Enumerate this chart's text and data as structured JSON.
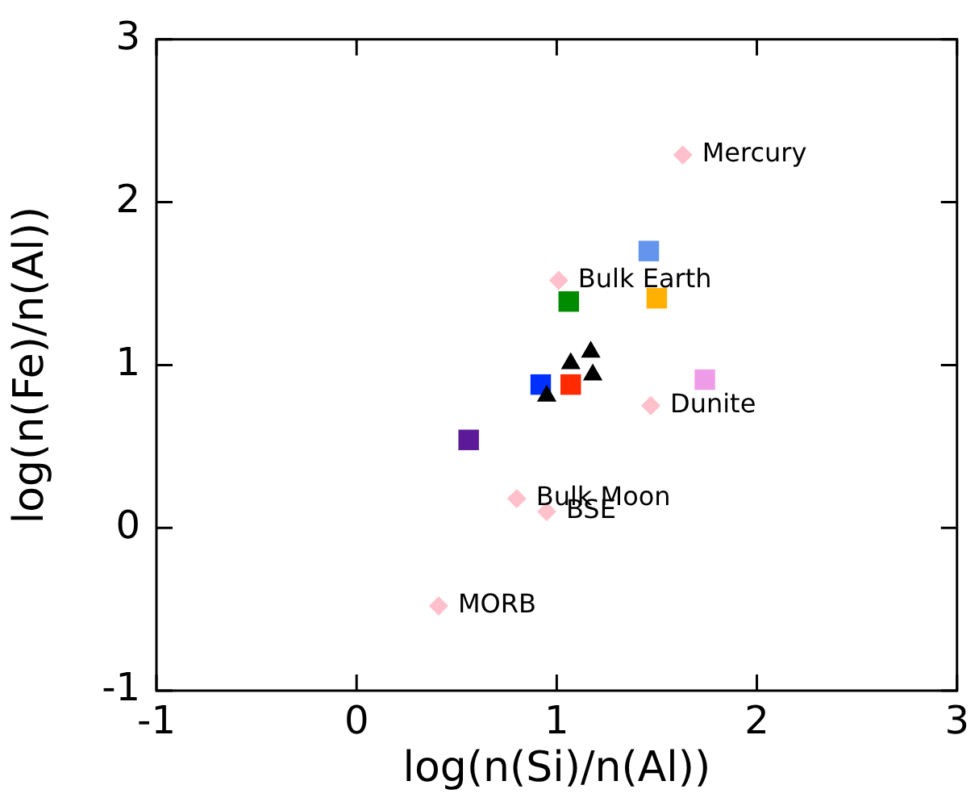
{
  "chart_data": {
    "type": "scatter",
    "xlabel": "log(n(Si)/n(Al))",
    "ylabel": "log(n(Fe)/n(Al))",
    "xlim": [
      -1,
      3
    ],
    "ylim": [
      -1,
      3
    ],
    "xticks": [
      -1,
      0,
      1,
      2,
      3
    ],
    "yticks": [
      -1,
      0,
      1,
      2,
      3
    ],
    "grid": false,
    "legend": false,
    "series": [
      {
        "color": "#000000",
        "marker": "triangle",
        "x": [
          1.07,
          1.17,
          1.18,
          0.95
        ],
        "values": [
          1.01,
          1.08,
          0.94,
          0.81
        ]
      },
      {
        "color": "#6495ed",
        "marker": "square",
        "x": [
          1.46
        ],
        "values": [
          1.7
        ]
      },
      {
        "color": "#008b00",
        "marker": "square",
        "x": [
          1.06
        ],
        "values": [
          1.39
        ]
      },
      {
        "color": "#ffb000",
        "marker": "square",
        "x": [
          1.5
        ],
        "values": [
          1.41
        ]
      },
      {
        "color": "#0030ff",
        "marker": "square",
        "x": [
          0.92
        ],
        "values": [
          0.88
        ]
      },
      {
        "color": "#ff2a00",
        "marker": "square",
        "x": [
          1.07
        ],
        "values": [
          0.88
        ]
      },
      {
        "color": "#ee9ce8",
        "marker": "square",
        "x": [
          1.74
        ],
        "values": [
          0.91
        ]
      },
      {
        "color": "#5c1a99",
        "marker": "square",
        "x": [
          0.56
        ],
        "values": [
          0.54
        ]
      },
      {
        "color": "#ffc0cb",
        "marker": "diamond",
        "x": [
          1.63,
          1.01,
          1.47,
          0.8,
          0.95,
          0.41
        ],
        "values": [
          2.29,
          1.52,
          0.75,
          0.18,
          0.1,
          -0.48
        ]
      }
    ],
    "annotations": [
      {
        "text": "Mercury",
        "x": 1.63,
        "y": 2.29
      },
      {
        "text": "Bulk Earth",
        "x": 1.01,
        "y": 1.52
      },
      {
        "text": "Dunite",
        "x": 1.47,
        "y": 0.75
      },
      {
        "text": "Bulk Moon",
        "x": 0.8,
        "y": 0.18
      },
      {
        "text": "BSE",
        "x": 0.95,
        "y": 0.1
      },
      {
        "text": "MORB",
        "x": 0.41,
        "y": -0.48
      }
    ]
  }
}
